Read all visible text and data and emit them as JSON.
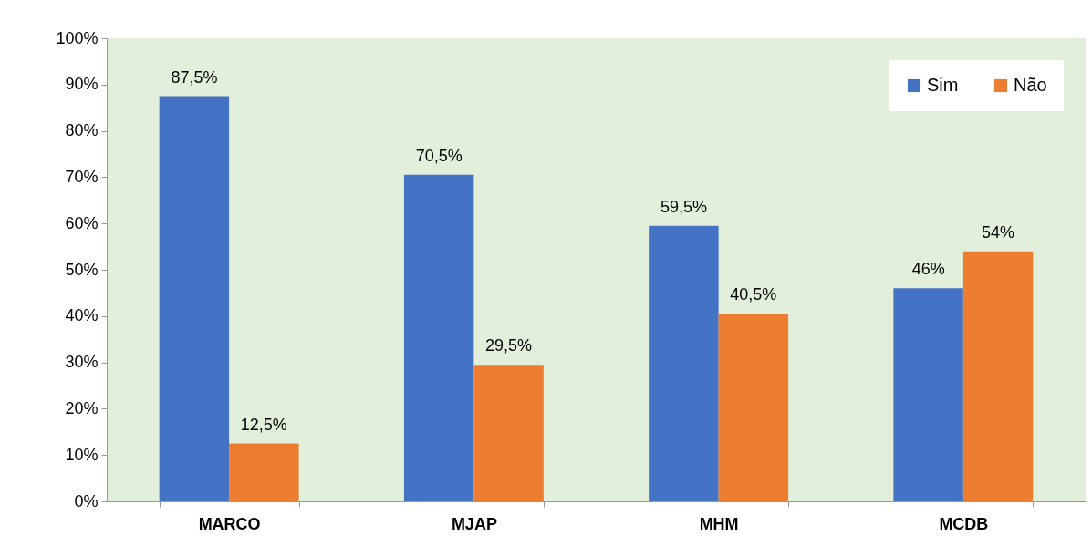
{
  "chart_data": {
    "type": "bar",
    "categories": [
      "MARCO",
      "MJAP",
      "MHM",
      "MCDB"
    ],
    "series": [
      {
        "name": "Sim",
        "color": "#4472c4",
        "values": [
          87.5,
          70.5,
          59.5,
          46
        ],
        "value_labels": [
          "87,5%",
          "70,5%",
          "59,5%",
          "46%"
        ]
      },
      {
        "name": "Não",
        "color": "#ed7d31",
        "values": [
          12.5,
          29.5,
          40.5,
          54
        ],
        "value_labels": [
          "12,5%",
          "29,5%",
          "40,5%",
          "54%"
        ]
      }
    ],
    "ylim": [
      0,
      100
    ],
    "yticks": [
      {
        "value": 0,
        "label": "0%"
      },
      {
        "value": 10,
        "label": "10%"
      },
      {
        "value": 20,
        "label": "20%"
      },
      {
        "value": 30,
        "label": "30%"
      },
      {
        "value": 40,
        "label": "40%"
      },
      {
        "value": 50,
        "label": "50%"
      },
      {
        "value": 60,
        "label": "60%"
      },
      {
        "value": 70,
        "label": "70%"
      },
      {
        "value": 80,
        "label": "80%"
      },
      {
        "value": 90,
        "label": "90%"
      },
      {
        "value": 100,
        "label": "100%"
      }
    ],
    "grid": false,
    "legend": "top right"
  }
}
